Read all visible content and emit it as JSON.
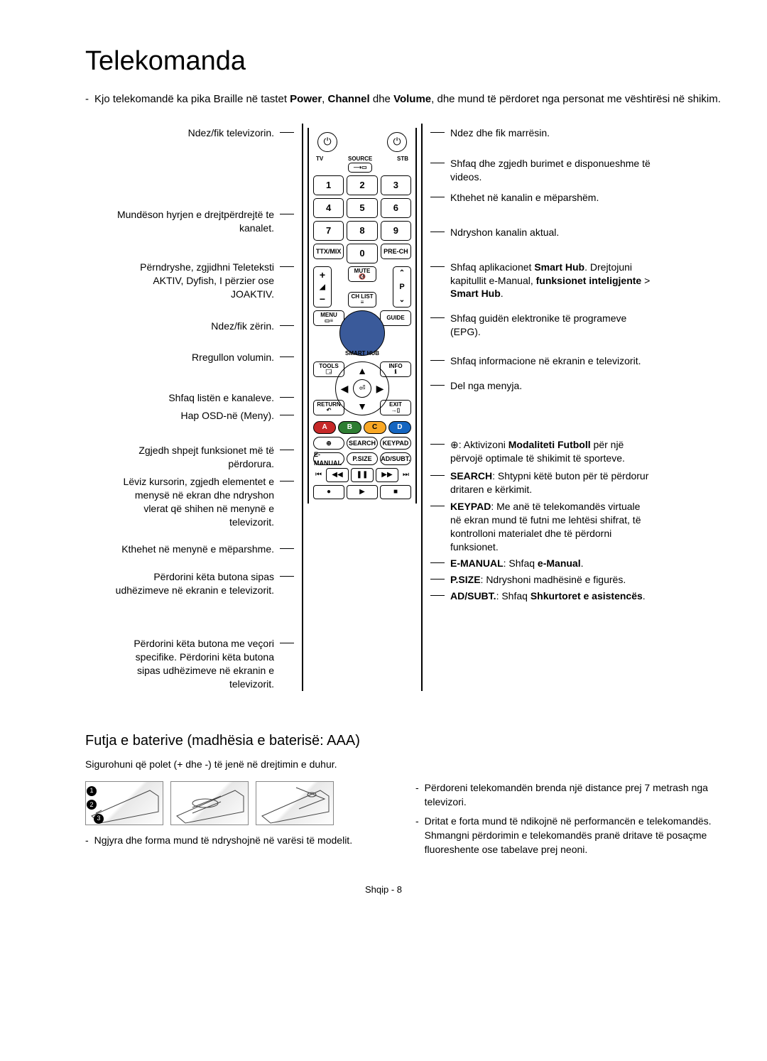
{
  "title": "Telekomanda",
  "intro": {
    "prefix": "-",
    "parts": [
      "Kjo telekomandë ka pika Braille në tastet ",
      "Power",
      ", ",
      "Channel",
      " dhe ",
      "Volume",
      ", dhe mund të përdoret nga personat me vështirësi në shikim."
    ]
  },
  "left": [
    {
      "text": "Ndez/fik televizorin.",
      "gap_before": 4
    },
    {
      "text": "Mundëson hyrjen e drejtpërdrejtë te kanalet.",
      "gap_before": 96
    },
    {
      "text": "Përndryshe, zgjidhni Teleteksti AKTIV, Dyfish, I përzier ose JOAKTIV.",
      "gap_before": 36
    },
    {
      "text": "Ndez/fik zërin.",
      "gap_before": 26
    },
    {
      "text": "Rregullon volumin.",
      "gap_before": 26
    },
    {
      "text": "Shfaq listën e kanaleve.",
      "gap_before": 38
    },
    {
      "text": "Hap OSD-në (Meny).",
      "gap_before": 6
    },
    {
      "text": "Zgjedh shpejt funksionet më të përdorura.",
      "gap_before": 30
    },
    {
      "text": "Lëviz kursorin, zgjedh elementet e menysë në ekran dhe ndryshon vlerat që shihen në menynë e televizorit.",
      "gap_before": 6
    },
    {
      "text": "Kthehet në menynë e mëparshme.",
      "gap_before": 20
    },
    {
      "text": "Përdorini këta butona sipas udhëzimeve në ekranin e televizorit.",
      "gap_before": 20
    },
    {
      "text": "Përdorini këta butona me veçori specifike. Përdorini këta butona sipas udhëzimeve në ekranin e televizorit.",
      "gap_before": 56
    }
  ],
  "right": [
    {
      "text": "Ndez dhe fik marrësin.",
      "gap_before": 4
    },
    {
      "text": "Shfaq dhe zgjedh burimet e disponueshme të videos.",
      "gap_before": 24
    },
    {
      "text": "Kthehet në kanalin e mëparshëm.",
      "gap_before": 10
    },
    {
      "text": "Ndryshon kanalin aktual.",
      "gap_before": 30
    },
    {
      "html": "Shfaq aplikacionet <b>Smart Hub</b>. Drejtojuni kapitullit e-Manual, <b>funksionet inteligjente</b> > <b>Smart Hub</b>.",
      "gap_before": 30
    },
    {
      "text": "Shfaq guidën elektronike të programeve (EPG).",
      "gap_before": 16
    },
    {
      "text": "Shfaq informacione në ekranin e televizorit.",
      "gap_before": 22
    },
    {
      "text": "Del nga menyja.",
      "gap_before": 16
    },
    {
      "html": "⊕: Aktivizoni <b>Modaliteti Futboll</b> për një përvojë optimale të shikimit të sporteve.",
      "gap_before": 64
    },
    {
      "html": "<b>SEARCH</b>: Shtypni këtë buton për të përdorur dritaren e kërkimit.",
      "gap_before": 6
    },
    {
      "html": "<b>KEYPAD</b>: Me anë të telekomandës virtuale në ekran mund të futni me lehtësi shifrat, të kontrolloni materialet dhe të përdorni funksionet.",
      "gap_before": 6
    },
    {
      "html": "<b>E-MANUAL</b>: Shfaq <b>e-Manual</b>.",
      "gap_before": 4
    },
    {
      "html": "<b>P.SIZE</b>: Ndryshoni madhësinë e figurës.",
      "gap_before": 4
    },
    {
      "html": "<b>AD/SUBT.</b>: Shfaq <b>Shkurtoret e asistencës</b>.",
      "gap_before": 4
    }
  ],
  "remote": {
    "tv": "TV",
    "stb": "STB",
    "source": "SOURCE",
    "nums": [
      "1",
      "2",
      "3",
      "4",
      "5",
      "6",
      "7",
      "8",
      "9",
      "0"
    ],
    "ttx": "TTX/MIX",
    "prech": "PRE-CH",
    "mute": "MUTE",
    "chlist": "CH LIST",
    "vol_plus": "+",
    "vol_minus": "−",
    "p": "P",
    "menu": "MENU",
    "guide": "GUIDE",
    "smarthub": "SMART HUB",
    "tools": "TOOLS",
    "info": "INFO",
    "return": "RETURN",
    "exit": "EXIT",
    "colors": [
      "A",
      "B",
      "C",
      "D"
    ],
    "row1": [
      "⊕",
      "SEARCH",
      "KEYPAD"
    ],
    "row2": [
      "E-MANUAL",
      "P.SIZE",
      "AD/SUBT."
    ],
    "media1": [
      "⏮",
      "◀◀",
      "❚❚",
      "▶▶",
      "⏭"
    ],
    "media2": [
      "●",
      "▶",
      "■"
    ]
  },
  "battery": {
    "title": "Futja e baterive (madhësia e baterisë: AAA)",
    "sub": "Sigurohuni që polet (+ dhe -) të jenë në drejtimin e duhur.",
    "note_left": "Ngjyra dhe forma mund të ndryshojnë në varësi të modelit.",
    "right_items": [
      "Përdoreni telekomandën brenda një distance prej 7 metrash nga televizori.",
      "Dritat e forta mund të ndikojnë në performancën e telekomandës. Shmangni përdorimin e telekomandës pranë dritave të posaçme fluoreshente ose tabelave prej neoni."
    ]
  },
  "footer": "Shqip - 8"
}
